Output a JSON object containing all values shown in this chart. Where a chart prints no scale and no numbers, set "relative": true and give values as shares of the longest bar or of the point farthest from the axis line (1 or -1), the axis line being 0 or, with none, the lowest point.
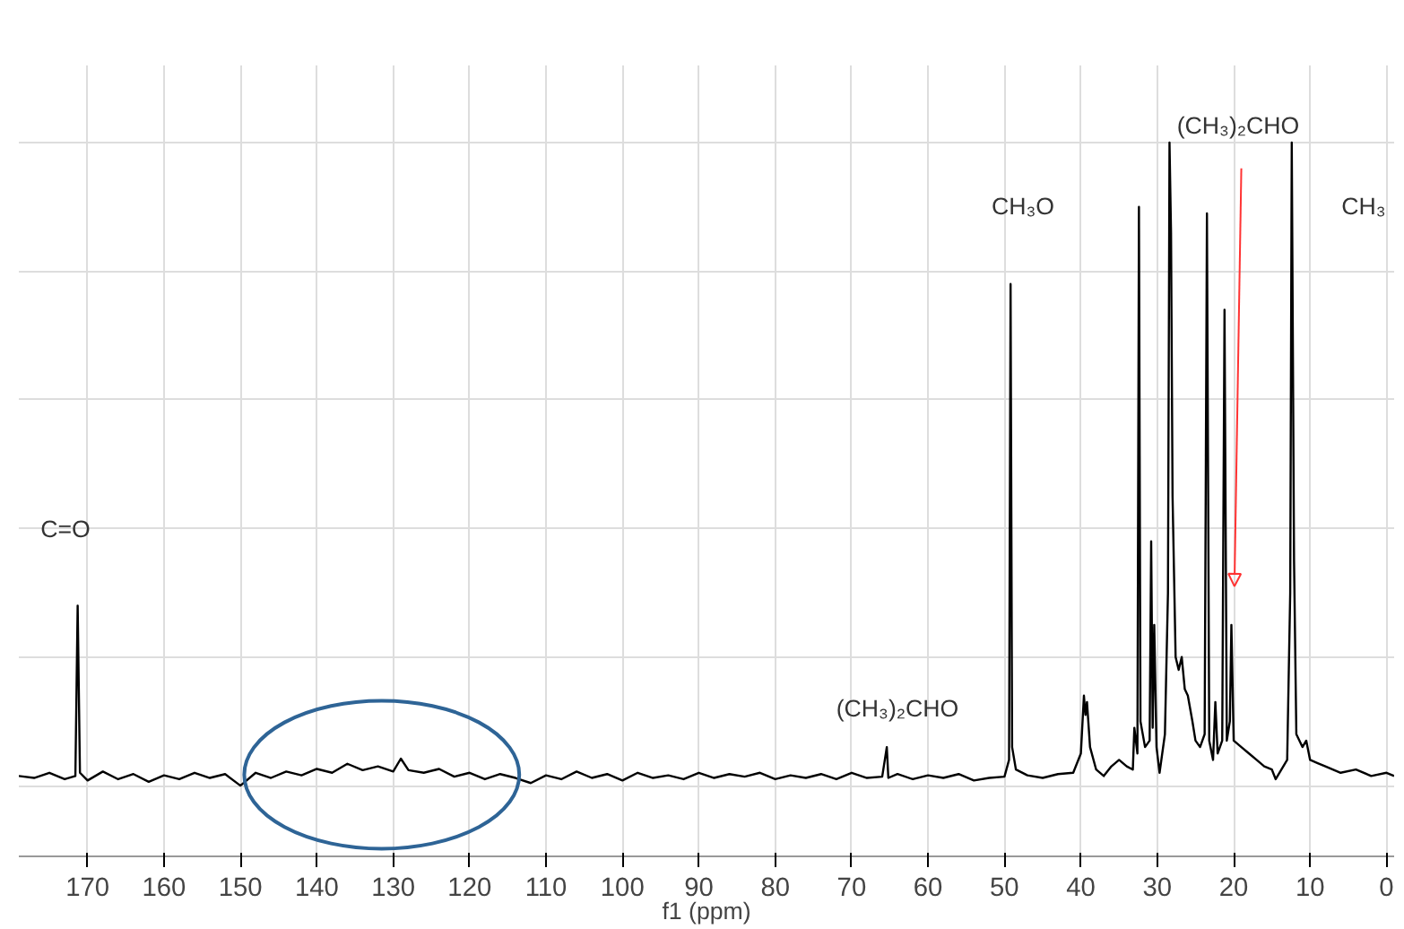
{
  "chart_data": {
    "type": "line",
    "relative": true,
    "xlabel": "f1 (ppm)",
    "xlim": [
      179,
      -1
    ],
    "xticks": [
      170,
      160,
      150,
      140,
      130,
      120,
      110,
      100,
      90,
      80,
      70,
      60,
      50,
      40,
      30,
      20,
      10,
      0
    ],
    "tick_labels": "x",
    "grid": true,
    "series": [
      {
        "color": "#000000",
        "x": [
          179,
          177,
          175,
          173,
          171.6,
          171.3,
          171.0,
          170,
          168,
          166,
          164,
          162,
          160,
          158,
          156,
          154,
          152,
          150,
          148,
          146,
          144,
          142,
          140,
          138,
          136,
          134,
          132,
          130,
          129,
          128,
          126,
          124,
          122,
          120,
          118,
          116,
          114,
          112,
          110,
          108,
          106,
          104,
          102,
          100,
          98,
          96,
          94,
          92,
          90,
          88,
          86,
          84,
          82,
          80,
          78,
          76,
          74,
          72,
          70,
          68,
          66,
          65.4,
          65.2,
          64,
          62,
          60,
          58,
          56,
          54,
          52,
          50,
          49.4,
          49.2,
          49.0,
          48.5,
          47,
          45,
          43,
          41,
          40,
          39.6,
          39.4,
          39.2,
          38.8,
          38,
          37,
          36,
          35,
          34,
          33.2,
          33,
          32.6,
          32.4,
          32.2,
          31.6,
          31,
          30.8,
          30.6,
          30.4,
          30.1,
          29.7,
          29,
          28.6,
          28.4,
          28.2,
          28.0,
          27.6,
          27.2,
          26.8,
          26.4,
          26,
          25.4,
          25,
          24.4,
          23.8,
          23.5,
          23.2,
          22.7,
          22.4,
          22.1,
          21.5,
          21.2,
          20.9,
          20.5,
          20.3,
          20.0,
          19,
          18,
          17,
          16,
          15,
          14.5,
          13,
          12.6,
          12.4,
          12.1,
          11.8,
          11,
          10.5,
          10,
          9,
          8,
          6,
          4,
          2,
          0,
          -1
        ],
        "values": [
          0.015,
          0.012,
          0.02,
          0.01,
          0.015,
          0.28,
          0.02,
          0.008,
          0.022,
          0.01,
          0.018,
          0.006,
          0.016,
          0.01,
          0.02,
          0.012,
          0.018,
          0.0,
          0.02,
          0.012,
          0.022,
          0.016,
          0.026,
          0.02,
          0.034,
          0.024,
          0.03,
          0.022,
          0.042,
          0.024,
          0.02,
          0.026,
          0.014,
          0.02,
          0.01,
          0.018,
          0.012,
          0.004,
          0.016,
          0.01,
          0.022,
          0.012,
          0.018,
          0.008,
          0.02,
          0.012,
          0.016,
          0.01,
          0.02,
          0.012,
          0.018,
          0.014,
          0.02,
          0.01,
          0.016,
          0.012,
          0.018,
          0.01,
          0.02,
          0.012,
          0.014,
          0.06,
          0.012,
          0.018,
          0.01,
          0.016,
          0.012,
          0.018,
          0.008,
          0.012,
          0.014,
          0.04,
          0.78,
          0.06,
          0.025,
          0.016,
          0.012,
          0.018,
          0.02,
          0.05,
          0.14,
          0.11,
          0.13,
          0.06,
          0.025,
          0.015,
          0.03,
          0.04,
          0.03,
          0.025,
          0.09,
          0.05,
          0.9,
          0.1,
          0.06,
          0.07,
          0.38,
          0.09,
          0.25,
          0.06,
          0.02,
          0.08,
          0.3,
          1.0,
          0.86,
          0.45,
          0.2,
          0.18,
          0.2,
          0.15,
          0.14,
          0.1,
          0.07,
          0.06,
          0.08,
          0.89,
          0.07,
          0.04,
          0.13,
          0.05,
          0.07,
          0.74,
          0.07,
          0.1,
          0.25,
          0.07,
          0.06,
          0.05,
          0.04,
          0.03,
          0.025,
          0.01,
          0.04,
          0.3,
          1.0,
          0.35,
          0.08,
          0.06,
          0.07,
          0.04,
          0.035,
          0.03,
          0.02,
          0.025,
          0.015,
          0.02,
          0.015
        ]
      }
    ],
    "annotations": [
      "C=O",
      "(CH₃)₂CHO",
      "CH₃O",
      "(CH₃)₂CHO",
      "CH₃"
    ]
  }
}
